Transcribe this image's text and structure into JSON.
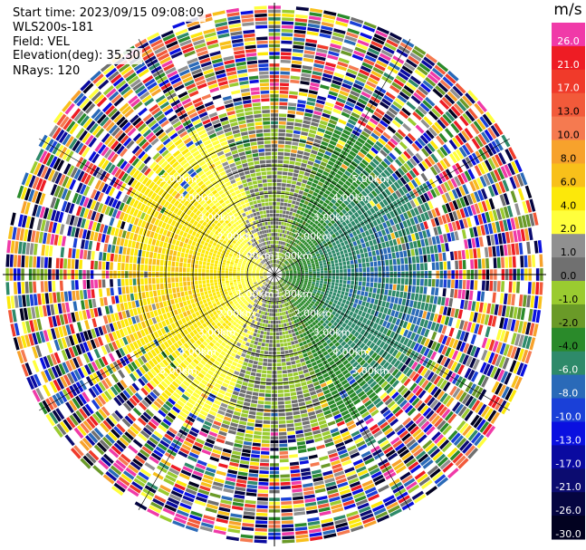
{
  "info": {
    "start_time": "Start time: 2023/09/15 09:08:09",
    "instrument": "WLS200s-181",
    "field": "Field: VEL",
    "elevation": "Elevation(deg): 35.30",
    "nrays": "NRays: 120"
  },
  "colorbar": {
    "unit": "m/s",
    "levels": [
      {
        "label": "26.0",
        "color": "#f03aa8"
      },
      {
        "label": "21.0",
        "color": "#ee1c24"
      },
      {
        "label": "17.0",
        "color": "#f03a2a"
      },
      {
        "label": "13.0",
        "color": "#f25a3a"
      },
      {
        "label": "10.0",
        "color": "#f57a50"
      },
      {
        "label": "8.0",
        "color": "#f7a22c"
      },
      {
        "label": "6.0",
        "color": "#f8c01a"
      },
      {
        "label": "4.0",
        "color": "#fce80a"
      },
      {
        "label": "2.0",
        "color": "#ffff3c"
      },
      {
        "label": "1.0",
        "color": "#909090"
      },
      {
        "label": "0.0",
        "color": "#707070"
      },
      {
        "label": "-1.0",
        "color": "#9acb30"
      },
      {
        "label": "-2.0",
        "color": "#6a9a28"
      },
      {
        "label": "-4.0",
        "color": "#2a8a2a"
      },
      {
        "label": "-6.0",
        "color": "#2e8a6a"
      },
      {
        "label": "-8.0",
        "color": "#2a6ab8"
      },
      {
        "label": "-10.0",
        "color": "#1a40d8"
      },
      {
        "label": "-13.0",
        "color": "#0a10e0"
      },
      {
        "label": "-17.0",
        "color": "#0a0aa0"
      },
      {
        "label": "-21.0",
        "color": "#0c0c70"
      },
      {
        "label": "-26.0",
        "color": "#050540"
      },
      {
        "label": "-30.0",
        "color": "#020220"
      }
    ]
  },
  "chart_data": {
    "type": "heatmap",
    "subtype": "polar-ppi",
    "field": "VEL",
    "unit": "m/s",
    "nrays": 120,
    "max_range_km": 6,
    "range_labels": [
      "1.00km",
      "2.00km",
      "3.00km",
      "4.00km",
      "5.00km"
    ],
    "pattern": {
      "west_half": "positive velocity 2 to 8 m/s (yellow/orange)",
      "east_half": "negative velocity -1 to -6 m/s (green)",
      "near_zero_band": "north and south sectors ~0 m/s (gray)",
      "outer_ranges": "noisy values beyond ~3.5 km"
    }
  }
}
